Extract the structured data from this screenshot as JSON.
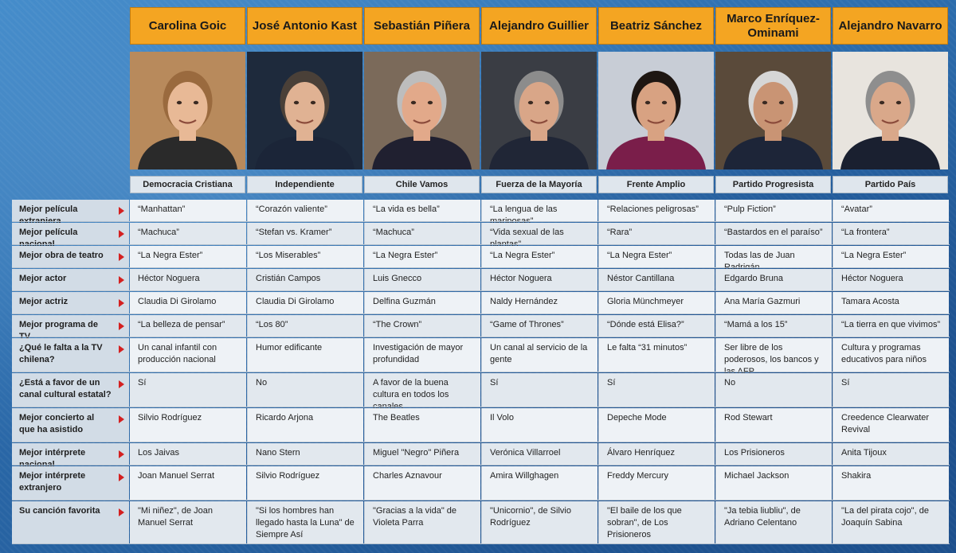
{
  "candidates": [
    {
      "name": "Carolina Goic",
      "party": "Democracia Cristiana"
    },
    {
      "name": "José Antonio Kast",
      "party": "Independiente"
    },
    {
      "name": "Sebastián Piñera",
      "party": "Chile Vamos"
    },
    {
      "name": "Alejandro Guillier",
      "party": "Fuerza de la Mayoría"
    },
    {
      "name": "Beatriz Sánchez",
      "party": "Frente Amplio"
    },
    {
      "name": "Marco Enríquez-Ominami",
      "party": "Partido Progresista"
    },
    {
      "name": "Alejandro Navarro",
      "party": "Partido País"
    }
  ],
  "rows": [
    {
      "label": "Mejor película extranjera",
      "answers": [
        "“Manhattan”",
        "“Corazón valiente”",
        "“La vida es bella”",
        "“La lengua de las mariposas”",
        "“Relaciones peligrosas”",
        "“Pulp Fiction”",
        "“Avatar”"
      ]
    },
    {
      "label": "Mejor película nacional",
      "answers": [
        "“Machuca”",
        "“Stefan vs. Kramer”",
        "“Machuca”",
        "“Vida sexual de las plantas”",
        "“Rara”",
        "“Bastardos en el paraíso”",
        "“La frontera”"
      ]
    },
    {
      "label": "Mejor obra de teatro",
      "answers": [
        "“La Negra Ester”",
        "“Los Miserables”",
        "“La Negra Ester”",
        "“La Negra Ester”",
        "“La Negra Ester”",
        "Todas las de Juan Radrigán",
        "“La Negra Ester”"
      ]
    },
    {
      "label": "Mejor actor",
      "answers": [
        "Héctor Noguera",
        "Cristián Campos",
        "Luis Gnecco",
        "Héctor Noguera",
        "Néstor Cantillana",
        "Edgardo Bruna",
        "Héctor Noguera"
      ]
    },
    {
      "label": "Mejor actriz",
      "answers": [
        "Claudia Di Girolamo",
        "Claudia Di Girolamo",
        "Delfina Guzmán",
        "Naldy Hernández",
        "Gloria Münchmeyer",
        "Ana María Gazmuri",
        "Tamara Acosta"
      ]
    },
    {
      "label": "Mejor programa de TV",
      "answers": [
        "“La belleza de pensar”",
        "“Los 80”",
        "“The Crown”",
        "“Game of Thrones”",
        "“Dónde está Elisa?”",
        "“Mamá a los 15”",
        "“La tierra en que vivimos”"
      ]
    },
    {
      "label": "¿Qué le falta a la TV chilena?",
      "answers": [
        "Un canal infantil con producción nacional",
        "Humor edificante",
        "Investigación de mayor profundidad",
        "Un canal al servicio de la gente",
        "Le falta “31 minutos”",
        "Ser libre de los poderosos, los bancos y las AFP",
        "Cultura y programas educativos para niños"
      ]
    },
    {
      "label": "¿Está a favor de un canal cultural estatal?",
      "answers": [
        "Sí",
        "No",
        "A favor de la buena cultura en todos los canales",
        "Sí",
        "Sí",
        "No",
        "Sí"
      ]
    },
    {
      "label": "Mejor concierto al que ha asistido",
      "answers": [
        "Silvio Rodríguez",
        "Ricardo Arjona",
        "The Beatles",
        "Il Volo",
        "Depeche Mode",
        "Rod Stewart",
        "Creedence Clearwater Revival"
      ]
    },
    {
      "label": "Mejor intérprete nacional",
      "answers": [
        "Los Jaivas",
        "Nano Stern",
        "Miguel \"Negro\" Piñera",
        "Verónica Villarroel",
        "Álvaro Henríquez",
        "Los Prisioneros",
        "Anita Tijoux"
      ]
    },
    {
      "label": "Mejor intérprete extranjero",
      "answers": [
        "Joan Manuel Serrat",
        "Silvio Rodríguez",
        "Charles Aznavour",
        "Amira Willghagen",
        "Freddy Mercury",
        "Michael Jackson",
        "Shakira"
      ]
    },
    {
      "label": "Su canción favorita",
      "answers": [
        "\"Mi niñez\", de Joan Manuel Serrat",
        "\"Si los hombres han llegado hasta la Luna\" de Siempre Así",
        "\"Gracias a la vida\" de Violeta Parra",
        "\"Unicornio\", de Silvio Rodríguez",
        "\"El baile de los que sobran\", de Los Prisioneros",
        "\"Ja tebia liubliu\", de Adriano Celentano",
        "\"La del pirata cojo\", de Joaquín Sabina"
      ]
    }
  ],
  "colors": {
    "header_orange": "#f4a522",
    "arrow_red": "#d42020",
    "label_bg": "#d2dce6",
    "cell_bg": "#eef2f6",
    "background_blue": "#2a68a8"
  },
  "photo_palettes": [
    {
      "bg": "#b88a5c",
      "hair": "#9a6a3e",
      "skin": "#e8b996",
      "clothes": "#2a2a2a"
    },
    {
      "bg": "#1e2a3c",
      "hair": "#4a4038",
      "skin": "#e0b293",
      "clothes": "#1b2538"
    },
    {
      "bg": "#7b6a5a",
      "hair": "#bdbdbd",
      "skin": "#e2a98a",
      "clothes": "#202030"
    },
    {
      "bg": "#3a3d44",
      "hair": "#8c8c8c",
      "skin": "#d9a688",
      "clothes": "#202636"
    },
    {
      "bg": "#c8cdd6",
      "hair": "#1e1612",
      "skin": "#d8a282",
      "clothes": "#7a1e4a"
    },
    {
      "bg": "#5a4a3a",
      "hair": "#d6d6d6",
      "skin": "#c99474",
      "clothes": "#1d2538"
    },
    {
      "bg": "#e8e4de",
      "hair": "#8e8e8e",
      "skin": "#d9a88a",
      "clothes": "#1a2030"
    }
  ]
}
